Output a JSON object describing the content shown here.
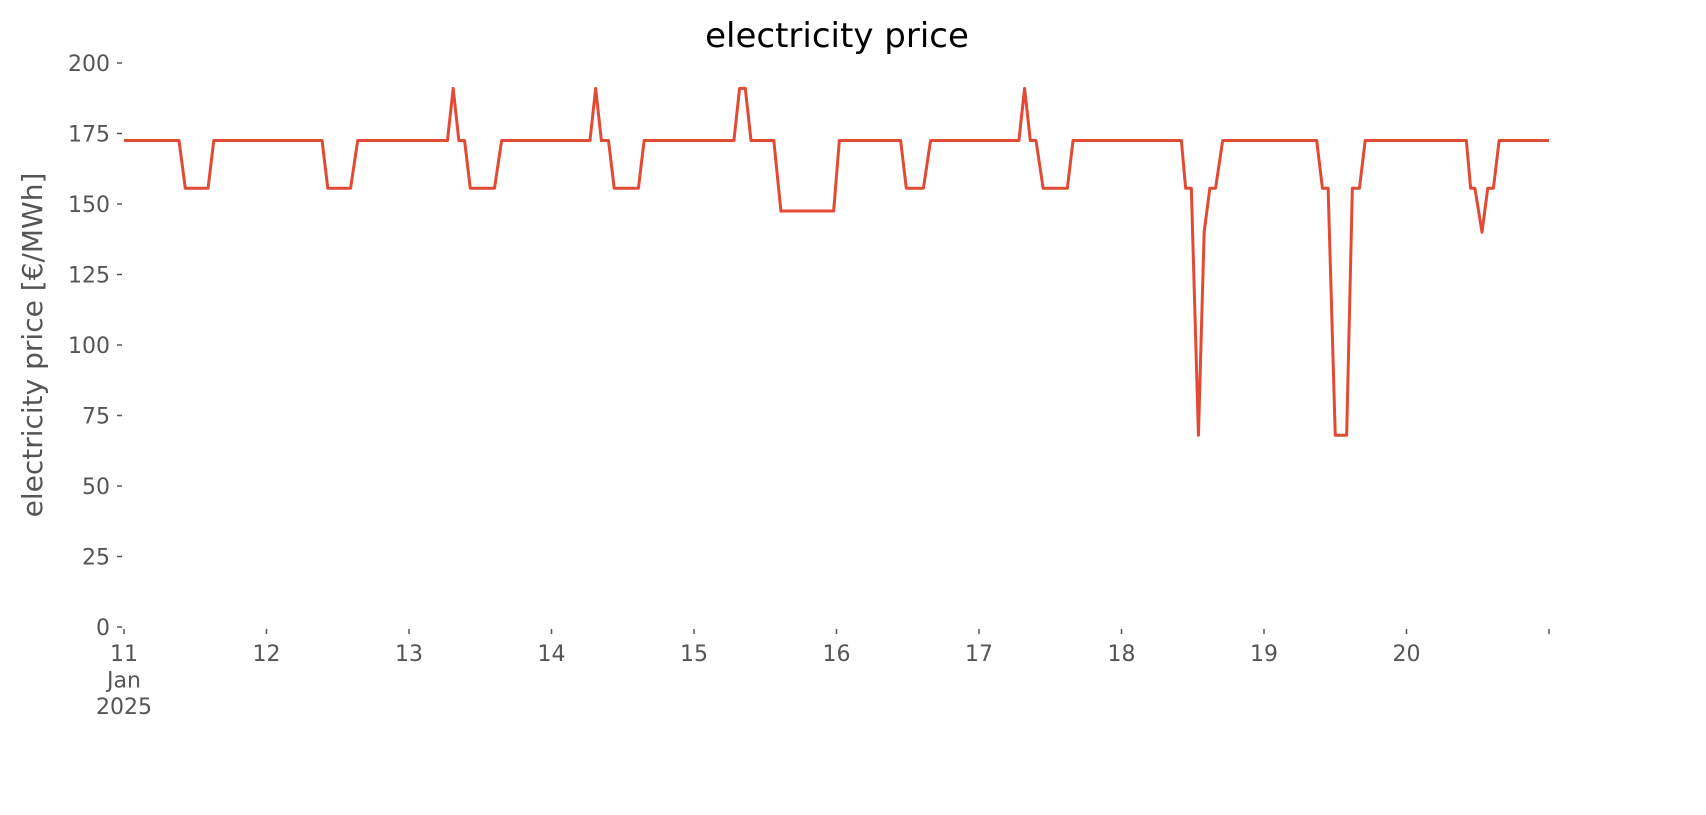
{
  "chart_data": {
    "type": "line",
    "title": "electricity price",
    "ylabel": "electricity price [€/MWh]",
    "xlim": [
      11,
      21
    ],
    "xticks": [
      {
        "value": 11,
        "label": "11\nJan\n2025"
      },
      12,
      13,
      14,
      15,
      16,
      17,
      18,
      19,
      20
    ],
    "ylim": [
      0,
      200
    ],
    "yticks": [
      0,
      25,
      50,
      75,
      100,
      125,
      150,
      175,
      200
    ],
    "series": [
      {
        "name": "electricity price",
        "color": "#e24a33",
        "x": [
          11,
          11.386,
          11.43,
          11.59,
          11.63,
          12.39,
          12.43,
          12.59,
          12.64,
          13.27,
          13.31,
          13.35,
          13.39,
          13.43,
          13.6,
          13.65,
          14.27,
          14.31,
          14.35,
          14.4,
          14.44,
          14.61,
          14.65,
          15.28,
          15.32,
          15.36,
          15.4,
          15.56,
          15.61,
          15.98,
          16.02,
          16.45,
          16.49,
          16.61,
          16.66,
          17.28,
          17.32,
          17.36,
          17.4,
          17.45,
          17.62,
          17.66,
          18.42,
          18.45,
          18.49,
          18.54,
          18.58,
          18.62,
          18.66,
          18.71,
          19.37,
          19.41,
          19.45,
          19.5,
          19.58,
          19.62,
          19.67,
          19.71,
          20.42,
          20.45,
          20.48,
          20.53,
          20.57,
          20.61,
          20.65,
          21
        ],
        "values": [
          172.5,
          172.5,
          155.6,
          155.6,
          172.5,
          172.5,
          155.6,
          155.6,
          172.5,
          172.5,
          191,
          172.5,
          172.5,
          155.6,
          155.6,
          172.5,
          172.5,
          191,
          172.5,
          172.5,
          155.6,
          155.6,
          172.5,
          172.5,
          191,
          191,
          172.5,
          172.5,
          147.5,
          147.5,
          172.5,
          172.5,
          155.6,
          155.6,
          172.5,
          172.5,
          191,
          172.5,
          172.5,
          155.6,
          155.6,
          172.5,
          172.5,
          155.6,
          155.6,
          68,
          140,
          155.6,
          155.6,
          172.5,
          172.5,
          155.6,
          155.6,
          68,
          68,
          155.6,
          155.6,
          172.5,
          172.5,
          155.6,
          155.6,
          140,
          155.6,
          155.6,
          172.5,
          172.5
        ]
      }
    ]
  }
}
